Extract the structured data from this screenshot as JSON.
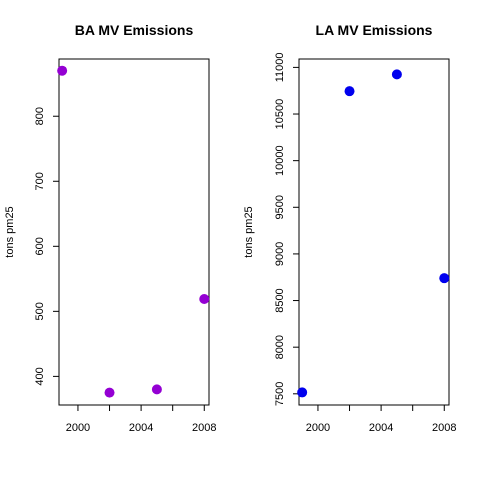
{
  "chart_data": [
    {
      "type": "scatter",
      "title": "BA MV Emissions",
      "xlabel": "",
      "ylabel": "tons pm25",
      "x": [
        1999,
        2002,
        2005,
        2008
      ],
      "y": [
        870,
        375,
        380,
        519
      ],
      "xlim": [
        1998.8,
        2008.3
      ],
      "ylim": [
        356,
        888
      ],
      "xticks": [
        2000,
        2002,
        2004,
        2006,
        2008
      ],
      "xtick_labels": [
        "2000",
        "",
        "2004",
        "",
        "2008"
      ],
      "yticks": [
        400,
        500,
        600,
        700,
        800
      ],
      "ytick_labels": [
        "400",
        "500",
        "600",
        "700",
        "800"
      ],
      "point_color": "#9400D3",
      "grid": false
    },
    {
      "type": "scatter",
      "title": "LA MV Emissions",
      "xlabel": "",
      "ylabel": "tons pm25",
      "x": [
        1999,
        2002,
        2005,
        2008
      ],
      "y": [
        7515,
        10745,
        10925,
        8740
      ],
      "xlim": [
        1998.8,
        2008.3
      ],
      "ylim": [
        7380,
        11090
      ],
      "xticks": [
        2000,
        2002,
        2004,
        2006,
        2008
      ],
      "xtick_labels": [
        "2000",
        "",
        "2004",
        "",
        "2008"
      ],
      "yticks": [
        7500,
        8000,
        8500,
        9000,
        9500,
        10000,
        10500,
        11000
      ],
      "ytick_labels": [
        "7500",
        "8000",
        "8500",
        "9000",
        "9500",
        "10000",
        "10500",
        "11000"
      ],
      "point_color": "#0000EE",
      "grid": false
    }
  ]
}
